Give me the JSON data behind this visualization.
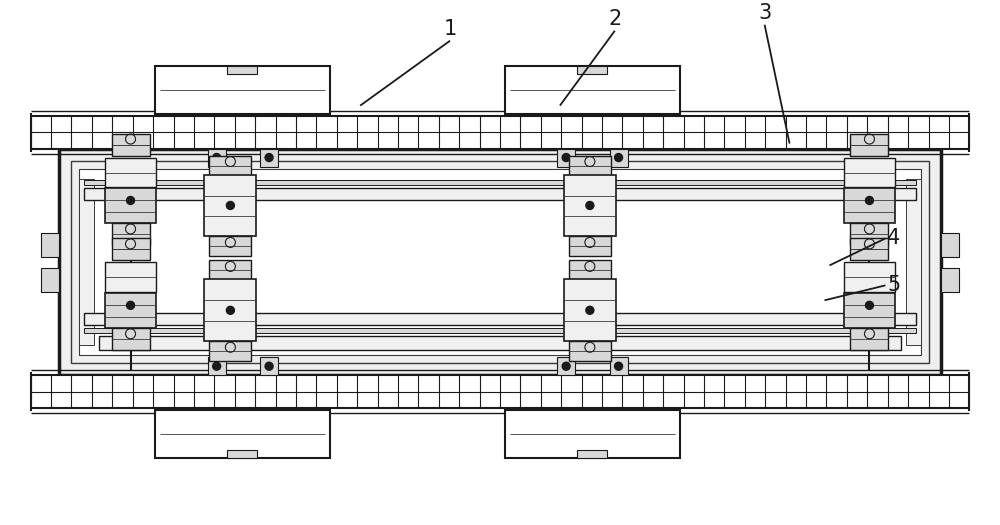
{
  "bg_color": "#ffffff",
  "lc": "#3a3a3a",
  "dc": "#1a1a1a",
  "fc_white": "#ffffff",
  "fc_light": "#f0f0f0",
  "fc_mid": "#d8d8d8",
  "fc_dark": "#b0b0b0",
  "label_1": "1",
  "label_2": "2",
  "label_3": "3",
  "label_4": "4",
  "label_5": "5"
}
